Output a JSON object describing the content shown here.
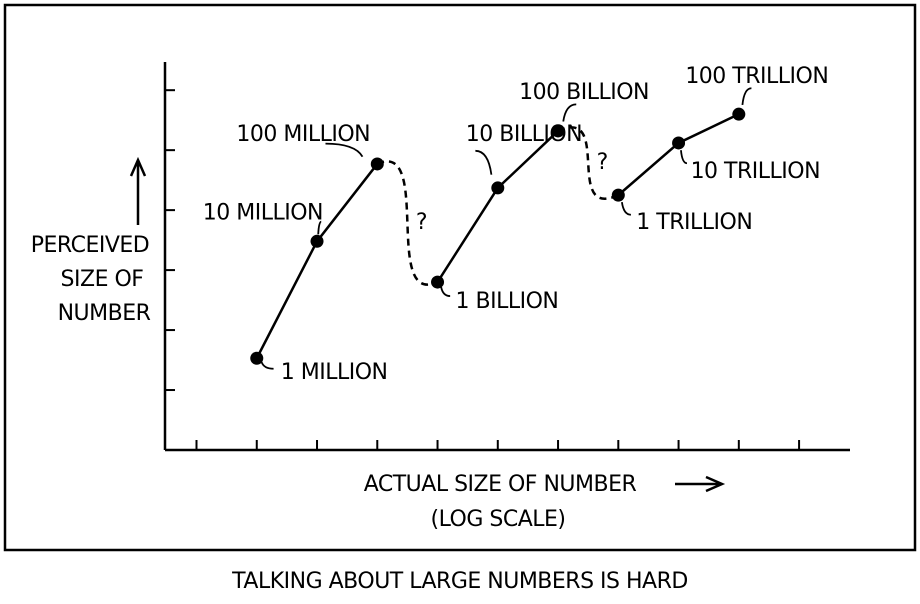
{
  "chart_data": {
    "type": "line",
    "title": "TALKING ABOUT LARGE NUMBERS IS HARD",
    "y_label": [
      "PERCEIVED",
      "SIZE OF",
      "NUMBER"
    ],
    "x_label": "ACTUAL SIZE OF NUMBER",
    "x_label_note": "(LOG SCALE)",
    "x": [
      1000000,
      10000000,
      100000000,
      1000000000,
      10000000000,
      100000000000,
      1000000000000,
      10000000000000,
      100000000000000
    ],
    "values": [
      1.53,
      3.48,
      4.77,
      2.8,
      4.37,
      5.32,
      4.25,
      5.12,
      5.6
    ],
    "point_labels": [
      "1 MILLION",
      "10 MILLION",
      "100 MILLION",
      "1 BILLION",
      "10 BILLION",
      "100 BILLION",
      "1 TRILLION",
      "10 TRILLION",
      "100 TRILLION"
    ],
    "annotations": [
      "?",
      "?"
    ],
    "color": "#000000",
    "xscale": "log",
    "xlim": [
      30000,
      7000000000000000
    ],
    "xticks": [
      100000,
      1000000,
      10000000,
      100000000,
      1000000000,
      10000000000,
      100000000000,
      1000000000000,
      10000000000000,
      100000000000000,
      1000000000000000
    ],
    "ylim": [
      0,
      6.47
    ],
    "yticks": [
      1,
      2,
      3,
      4,
      5,
      6
    ]
  }
}
